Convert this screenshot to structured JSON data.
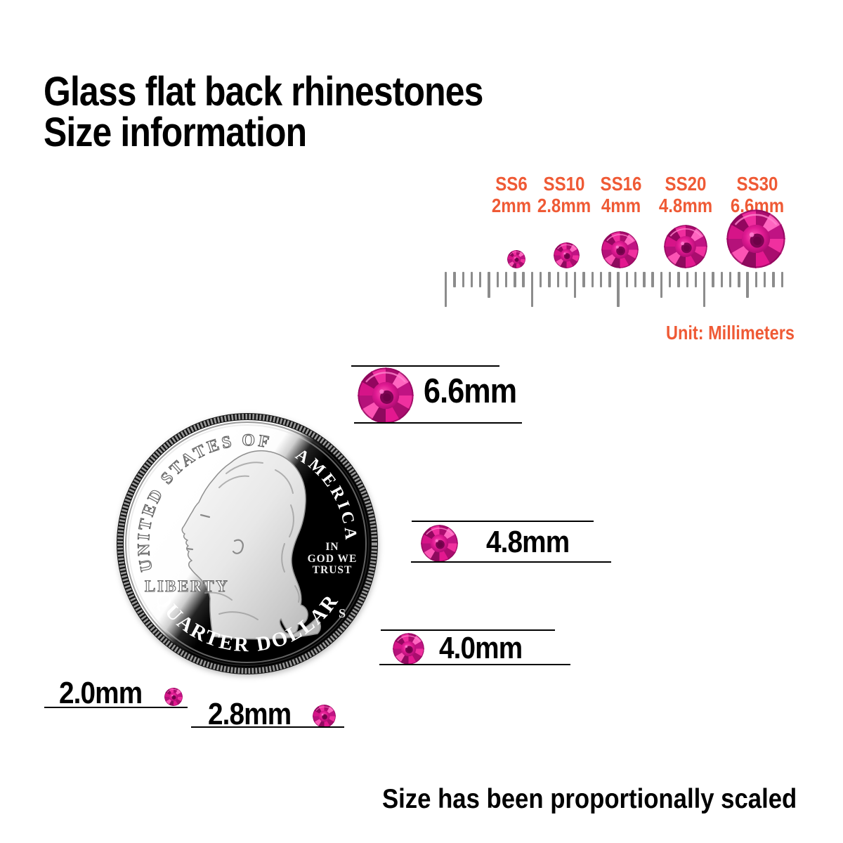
{
  "title": {
    "line1": "Glass flat back rhinestones",
    "line2": "Size information"
  },
  "size_chart": {
    "entries": [
      {
        "code": "SS6",
        "size": "2mm"
      },
      {
        "code": "SS10",
        "size": "2.8mm"
      },
      {
        "code": "SS16",
        "size": "4mm"
      },
      {
        "code": "SS20",
        "size": "4.8mm"
      },
      {
        "code": "SS30",
        "size": "6.6mm"
      }
    ],
    "unit_label": "Unit: Millimeters",
    "ruler": {
      "tick_count": 40,
      "major_every": 10,
      "medium_every": 5
    }
  },
  "coin": {
    "top_text_left": "UNITED STATES OF",
    "top_text_right": "AMERICA",
    "liberty": "LIBERTY",
    "motto_line1": "IN",
    "motto_line2": "GOD WE",
    "motto_line3": "TRUST",
    "mint_mark": "S",
    "bottom_text": "QUARTER DOLLAR"
  },
  "comparisons": [
    {
      "label": "6.6mm"
    },
    {
      "label": "4.8mm"
    },
    {
      "label": "4.0mm"
    },
    {
      "label": "2.0mm"
    },
    {
      "label": "2.8mm"
    }
  ],
  "footer": {
    "note": "Size has been proportionally scaled"
  },
  "colors": {
    "accent_orange": "#EF5A35",
    "stone_pink": "#E3188F",
    "stone_dark": "#8E0A5E",
    "ruler_gray": "#8C8C8C",
    "text_black": "#000000"
  }
}
